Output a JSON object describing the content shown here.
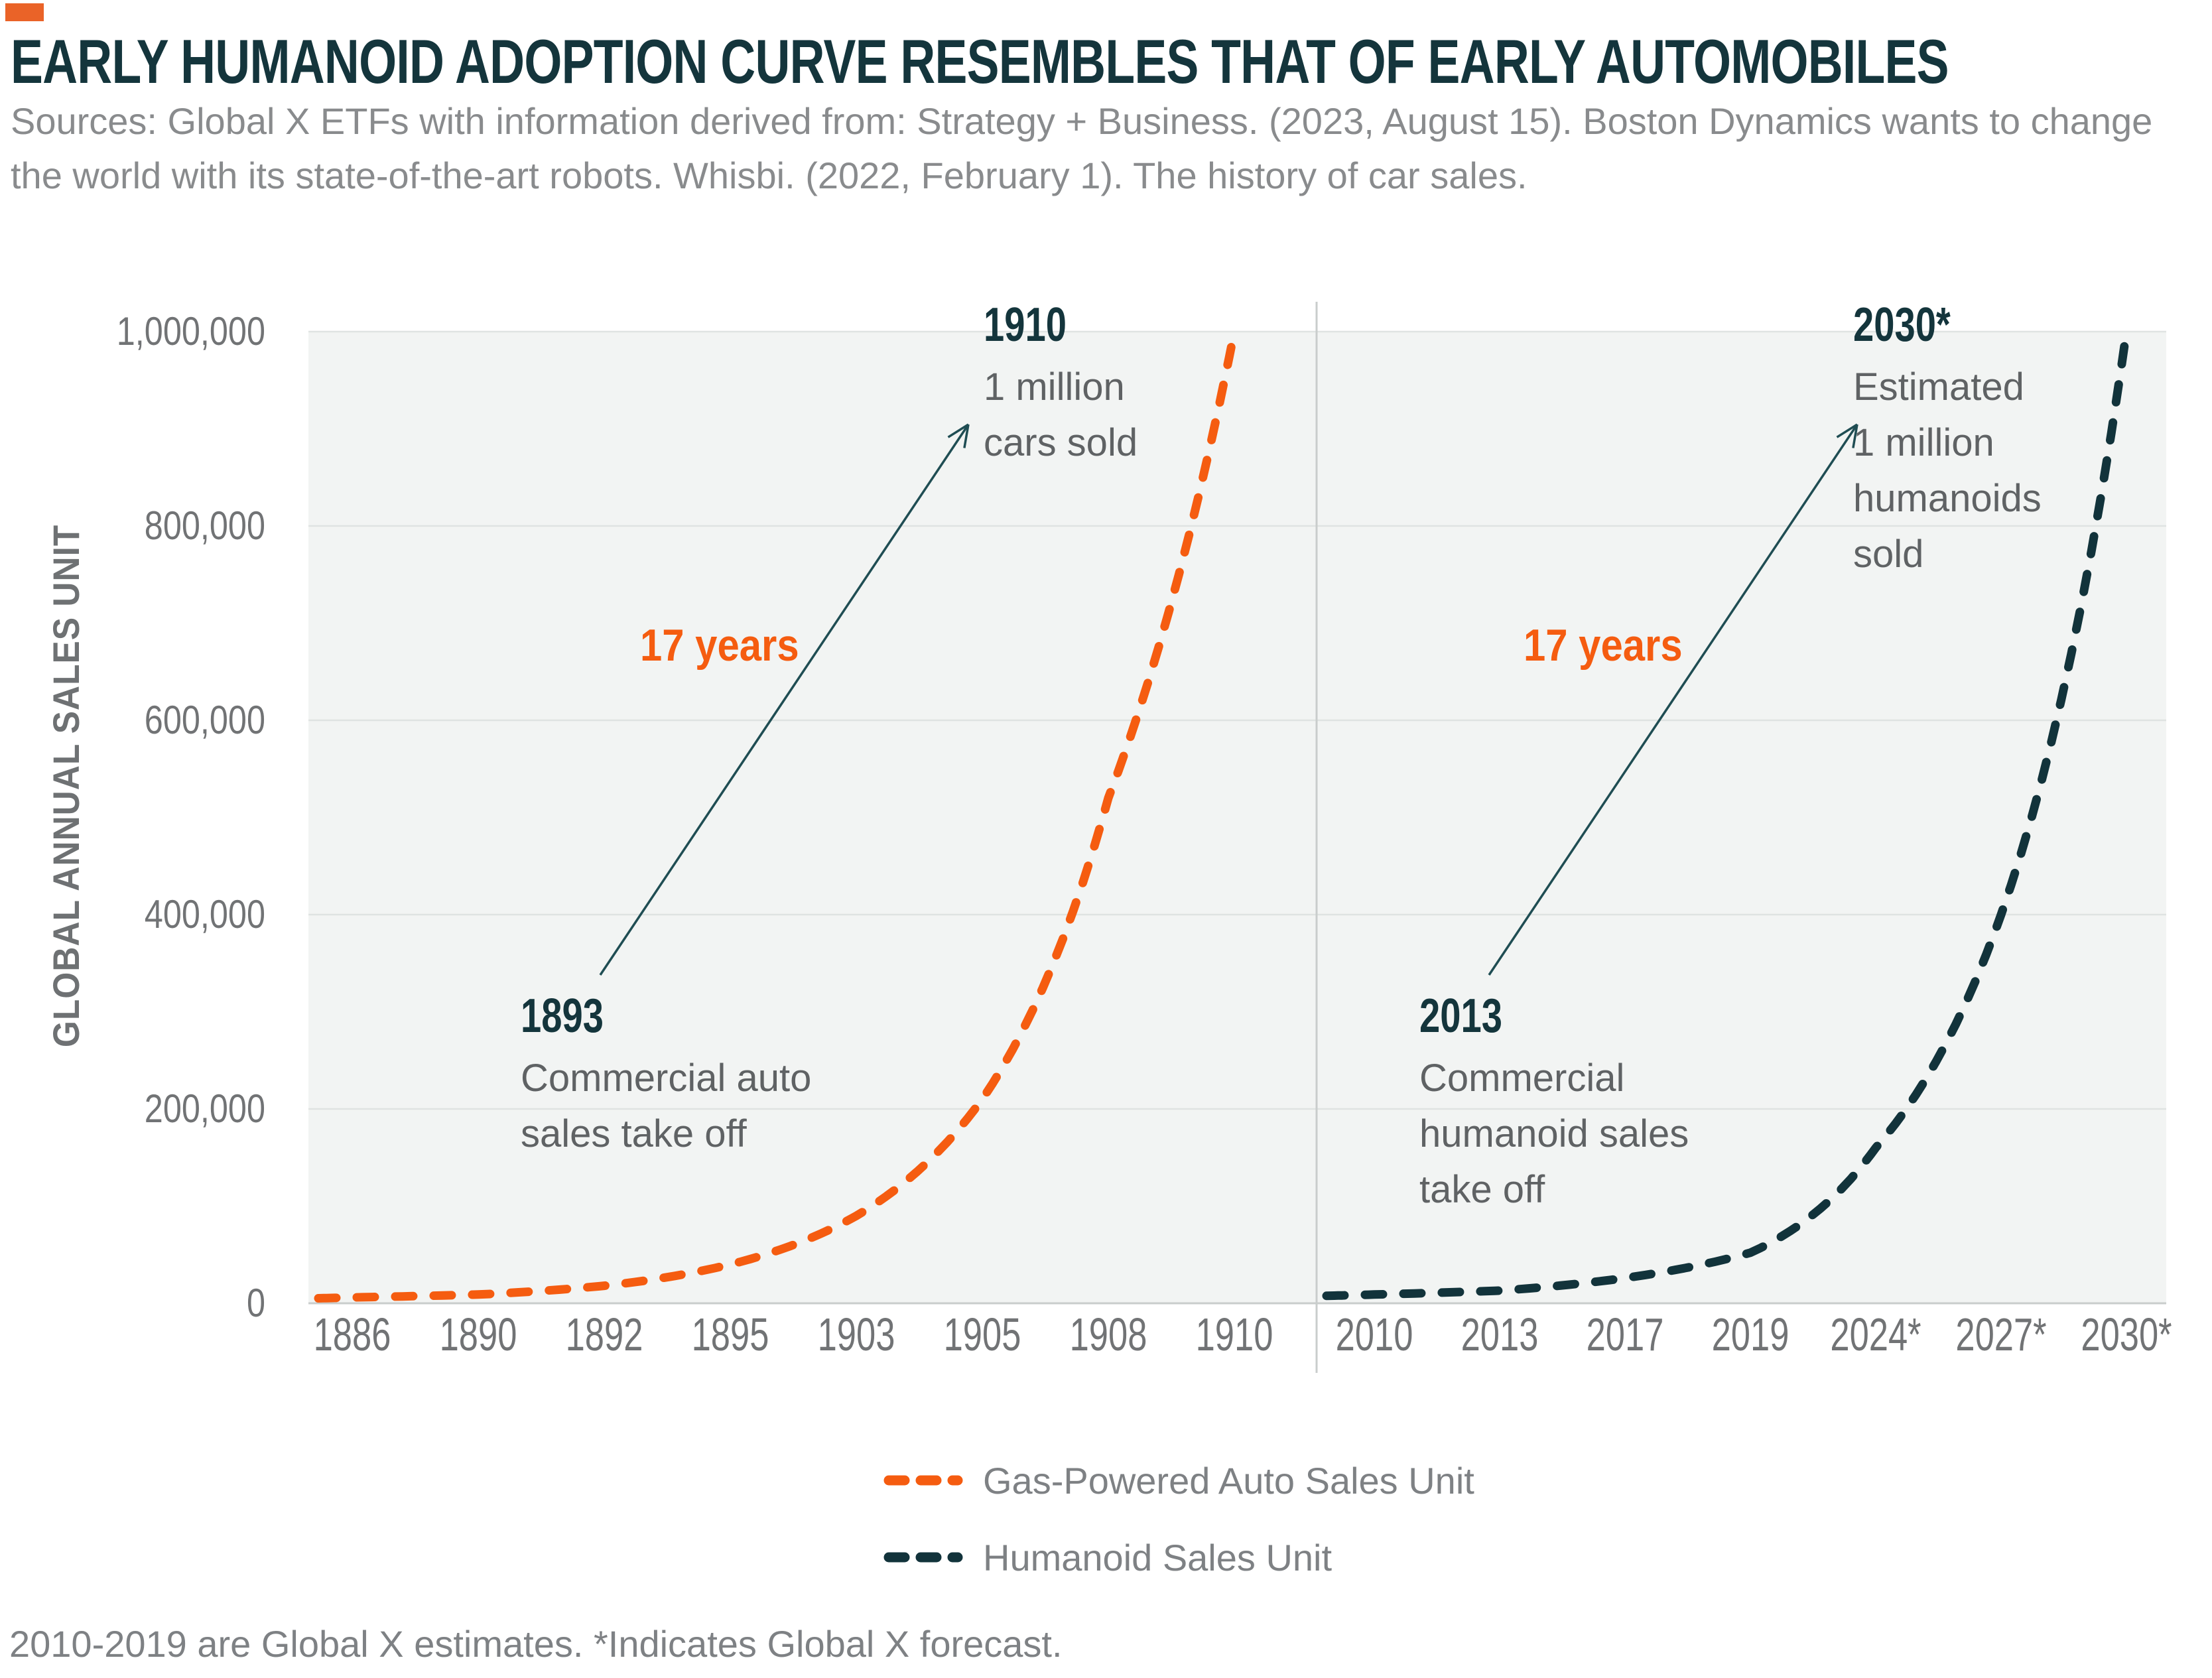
{
  "page": {
    "title": "EARLY HUMANOID ADOPTION CURVE RESEMBLES THAT OF EARLY AUTOMOBILES",
    "sources": "Sources: Global X ETFs with information derived from: Strategy + Business. (2023, August 15). Boston Dynamics wants to change the world with its state-of-the-art robots. Whisbi. (2022, February 1). The history of car sales.",
    "footnote": "2010-2019 are Global X estimates. *Indicates Global X forecast."
  },
  "colors": {
    "page_bg": "#FFFFFF",
    "logo_orange": "#EA6328",
    "orange": "#F55C10",
    "dark_teal": "#14353C",
    "curve_teal": "#12333B",
    "arrow_teal": "#1F4D53",
    "tick_gray": "#717375",
    "axis_title_gray": "#6E7173",
    "sources_gray": "#898B8D",
    "body_gray": "#5F6264",
    "legend_gray": "#7E8184",
    "plot_bg": "#F2F4F3",
    "gridline": "#DFE3E2",
    "axis_line": "#C9CDCC"
  },
  "y_axis": {
    "label": "GLOBAL ANNUAL SALES UNIT",
    "tick_labels": [
      "1,000,000",
      "800,000",
      "600,000",
      "400,000",
      "200,000",
      "0"
    ]
  },
  "legend": {
    "items": [
      {
        "label": "Gas-Powered Auto Sales Unit",
        "color": "#F55C10"
      },
      {
        "label": "Humanoid Sales Unit",
        "color": "#12333B"
      }
    ]
  },
  "annotations": {
    "left_peak": {
      "year": "1910",
      "lines": [
        "1 million",
        "cars sold"
      ]
    },
    "left_duration": "17 years",
    "left_start": {
      "year": "1893",
      "lines": [
        "Commercial auto",
        "sales take off"
      ]
    },
    "right_peak": {
      "year": "2030*",
      "lines": [
        "Estimated",
        "1 million",
        "humanoids",
        "sold"
      ]
    },
    "right_duration": "17 years",
    "right_start": {
      "year": "2013",
      "lines": [
        "Commercial",
        "humanoid sales",
        "take off"
      ]
    }
  },
  "chart_data": {
    "type": "line",
    "title": "EARLY HUMANOID ADOPTION CURVE RESEMBLES THAT OF EARLY AUTOMOBILES",
    "xlabel": "",
    "ylabel": "GLOBAL ANNUAL SALES UNIT",
    "ylim": [
      0,
      1000000
    ],
    "y_ticks": [
      0,
      200000,
      400000,
      600000,
      800000,
      1000000
    ],
    "grid": true,
    "line_style": "dashed",
    "legend_position": "bottom-center",
    "panels": [
      {
        "name": "Gas-Powered Auto Sales Unit",
        "color": "#F55C10",
        "categories": [
          "1886",
          "1890",
          "1892",
          "1895",
          "1903",
          "1905",
          "1908",
          "1910"
        ],
        "values": [
          6000,
          9000,
          18000,
          40000,
          90000,
          210000,
          520000,
          1000000
        ]
      },
      {
        "name": "Humanoid Sales Unit",
        "color": "#12333B",
        "categories": [
          "2010",
          "2013",
          "2017",
          "2019",
          "2024*",
          "2027*",
          "2030*"
        ],
        "values": [
          9000,
          13000,
          26000,
          52000,
          160000,
          400000,
          1000000
        ]
      }
    ]
  }
}
